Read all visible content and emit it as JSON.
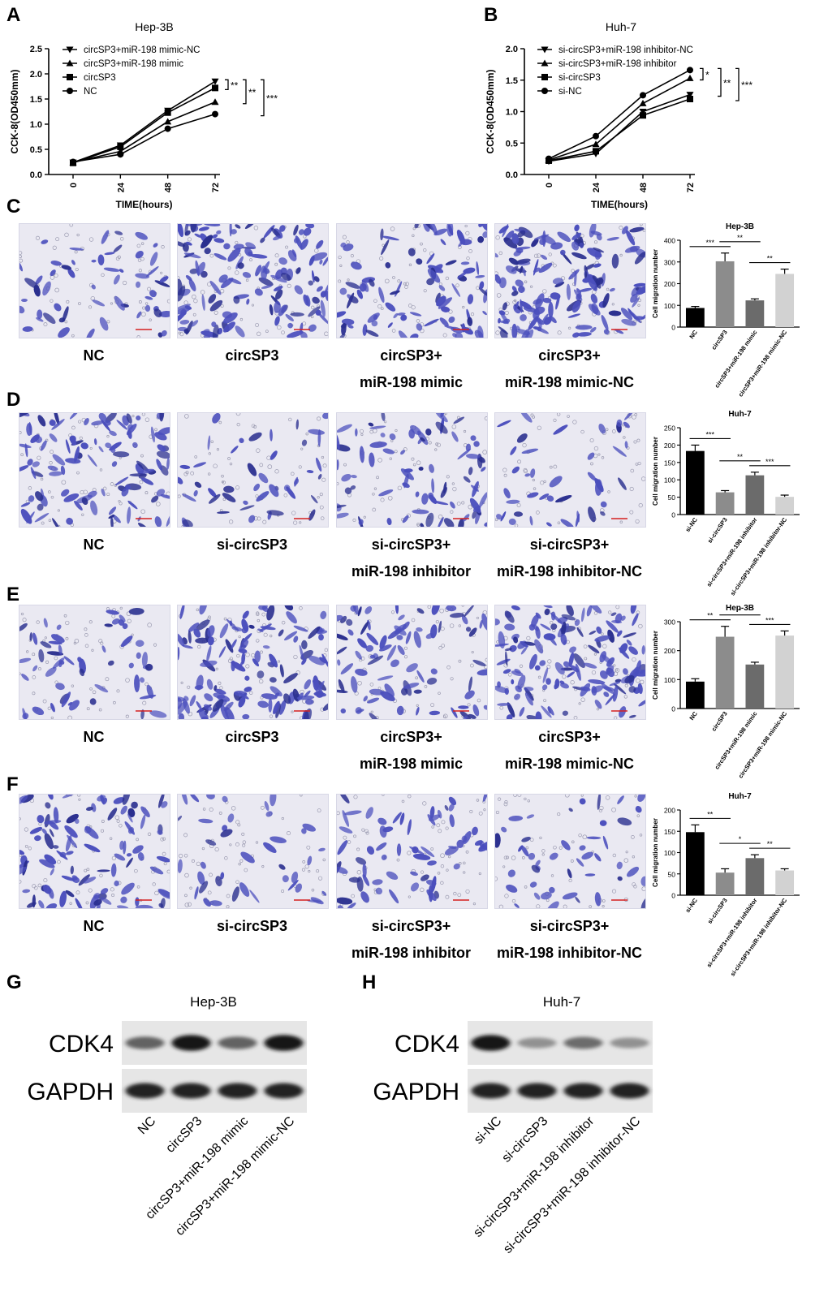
{
  "panel_letters": [
    "A",
    "B",
    "C",
    "D",
    "E",
    "F",
    "G",
    "H"
  ],
  "colors": {
    "stain_bg": "#eae9f2",
    "stain_cell": "#4b4fbd",
    "stain_dark": "#2a2f8f",
    "scale_bar": "#d42020"
  },
  "chart_data": [
    {
      "id": "A",
      "type": "line",
      "title": "Hep-3B",
      "xlabel": "TIME(hours)",
      "ylabel": "CCK-8(OD450mm)",
      "x": [
        0,
        24,
        48,
        72
      ],
      "ylim": [
        0,
        2.5
      ],
      "yticks": [
        0,
        0.5,
        1.0,
        1.5,
        2.0,
        2.5
      ],
      "series": [
        {
          "name": "circSP3+miR-198 mimic-NC",
          "marker": "tri-down",
          "values": [
            0.24,
            0.58,
            1.27,
            1.85
          ]
        },
        {
          "name": "circSP3+miR-198 mimic",
          "marker": "tri-up",
          "values": [
            0.24,
            0.46,
            1.05,
            1.44
          ]
        },
        {
          "name": "circSP3",
          "marker": "square",
          "values": [
            0.23,
            0.55,
            1.23,
            1.72
          ]
        },
        {
          "name": "NC",
          "marker": "circle",
          "values": [
            0.25,
            0.4,
            0.91,
            1.2
          ]
        }
      ],
      "significance": [
        "**",
        "**",
        "***"
      ],
      "legend": "top-left",
      "grid": false
    },
    {
      "id": "B",
      "type": "line",
      "title": "Huh-7",
      "xlabel": "TIME(hours)",
      "ylabel": "CCK-8(OD450mm)",
      "x": [
        0,
        24,
        48,
        72
      ],
      "ylim": [
        0,
        2.0
      ],
      "yticks": [
        0,
        0.5,
        1.0,
        1.5,
        2.0
      ],
      "series": [
        {
          "name": "si-circSP3+miR-198 inhibitor-NC",
          "marker": "tri-down",
          "values": [
            0.21,
            0.33,
            1.0,
            1.27
          ]
        },
        {
          "name": "si-circSP3+miR-198 inhibitor",
          "marker": "tri-up",
          "values": [
            0.23,
            0.48,
            1.13,
            1.53
          ]
        },
        {
          "name": "si-circSP3",
          "marker": "square",
          "values": [
            0.22,
            0.37,
            0.94,
            1.2
          ]
        },
        {
          "name": "si-NC",
          "marker": "circle",
          "values": [
            0.25,
            0.61,
            1.26,
            1.66
          ]
        }
      ],
      "significance": [
        "*",
        "**",
        "***"
      ],
      "legend": "top-left",
      "grid": false
    },
    {
      "id": "C",
      "type": "bar",
      "title": "Hep-3B",
      "ylabel": "Cell migration number",
      "ylim": [
        0,
        400
      ],
      "yticks": [
        0,
        100,
        200,
        300,
        400
      ],
      "categories": [
        "NC",
        "circSP3",
        "circSP3+miR-198 mimic",
        "circSP3+miR-198 mimic-NC"
      ],
      "values": [
        88,
        303,
        123,
        245
      ],
      "errors": [
        7,
        38,
        7,
        22
      ],
      "bar_colors": [
        "#000000",
        "#8c8c8c",
        "#6b6b6b",
        "#d2d2d2"
      ],
      "brackets": [
        {
          "from": 0,
          "to": 1,
          "label": "***"
        },
        {
          "from": 1,
          "to": 2,
          "label": "**"
        },
        {
          "from": 2,
          "to": 3,
          "label": "**"
        }
      ]
    },
    {
      "id": "D",
      "type": "bar",
      "title": "Huh-7",
      "ylabel": "Cell migration number",
      "ylim": [
        0,
        250
      ],
      "yticks": [
        0,
        50,
        100,
        150,
        200,
        250
      ],
      "categories": [
        "si-NC",
        "si-circSP3",
        "si-circSP3+miR-198 inhibitor",
        "si-circSP3+miR-198 inhibitor-NC"
      ],
      "values": [
        183,
        64,
        113,
        51
      ],
      "errors": [
        17,
        5,
        9,
        5
      ],
      "bar_colors": [
        "#000000",
        "#8c8c8c",
        "#6b6b6b",
        "#d2d2d2"
      ],
      "brackets": [
        {
          "from": 0,
          "to": 1,
          "label": "***"
        },
        {
          "from": 1,
          "to": 2,
          "label": "**"
        },
        {
          "from": 2,
          "to": 3,
          "label": "***"
        }
      ]
    },
    {
      "id": "E",
      "type": "bar",
      "title": "Hep-3B",
      "ylabel": "Cell migration number",
      "ylim": [
        0,
        300
      ],
      "yticks": [
        0,
        100,
        200,
        300
      ],
      "categories": [
        "NC",
        "circSP3",
        "circSP3+miR-198 mimic",
        "circSP3+miR-198 mimic-NC"
      ],
      "values": [
        93,
        248,
        152,
        252
      ],
      "errors": [
        10,
        36,
        8,
        16
      ],
      "bar_colors": [
        "#000000",
        "#8c8c8c",
        "#6b6b6b",
        "#d2d2d2"
      ],
      "brackets": [
        {
          "from": 0,
          "to": 1,
          "label": "**"
        },
        {
          "from": 1,
          "to": 2,
          "label": "*"
        },
        {
          "from": 2,
          "to": 3,
          "label": "***"
        }
      ]
    },
    {
      "id": "F",
      "type": "bar",
      "title": "Huh-7",
      "ylabel": "Cell migration number",
      "ylim": [
        0,
        200
      ],
      "yticks": [
        0,
        50,
        100,
        150,
        200
      ],
      "categories": [
        "si-NC",
        "si-circSP3",
        "si-circSP3+miR-198 inhibitor",
        "si-circSP3+miR-198 inhibitor-NC"
      ],
      "values": [
        148,
        53,
        87,
        58
      ],
      "errors": [
        17,
        9,
        8,
        4
      ],
      "bar_colors": [
        "#000000",
        "#8c8c8c",
        "#6b6b6b",
        "#d2d2d2"
      ],
      "brackets": [
        {
          "from": 0,
          "to": 1,
          "label": "**"
        },
        {
          "from": 1,
          "to": 2,
          "label": "*"
        },
        {
          "from": 2,
          "to": 3,
          "label": "**"
        }
      ]
    }
  ],
  "micrograph_rows": [
    {
      "id": "C",
      "labels": [
        [
          "NC"
        ],
        [
          "circSP3"
        ],
        [
          "circSP3+",
          "miR-198 mimic"
        ],
        [
          "circSP3+",
          "miR-198 mimic-NC"
        ]
      ],
      "densities": [
        55,
        140,
        95,
        150
      ]
    },
    {
      "id": "D",
      "labels": [
        [
          "NC"
        ],
        [
          "si-circSP3"
        ],
        [
          "si-circSP3+",
          "miR-198 inhibitor"
        ],
        [
          "si-circSP3+",
          "miR-198 inhibitor-NC"
        ]
      ],
      "densities": [
        110,
        45,
        80,
        40
      ]
    },
    {
      "id": "E",
      "labels": [
        [
          "NC"
        ],
        [
          "circSP3"
        ],
        [
          "circSP3+",
          "miR-198 mimic"
        ],
        [
          "circSP3+",
          "miR-198 mimic-NC"
        ]
      ],
      "densities": [
        55,
        135,
        85,
        145
      ]
    },
    {
      "id": "F",
      "labels": [
        [
          "NC"
        ],
        [
          "si-circSP3"
        ],
        [
          "si-circSP3+",
          "miR-198 inhibitor"
        ],
        [
          "si-circSP3+",
          "miR-198 inhibitor-NC"
        ]
      ],
      "densities": [
        100,
        40,
        65,
        45
      ]
    }
  ],
  "western_blots": [
    {
      "id": "G",
      "title": "Hep-3B",
      "proteins": [
        "CDK4",
        "GAPDH"
      ],
      "lanes": [
        "NC",
        "circSP3",
        "circSP3+miR-198 mimic",
        "circSP3+miR-198 mimic-NC"
      ],
      "intensity": {
        "CDK4": [
          0.55,
          0.95,
          0.55,
          0.95
        ],
        "GAPDH": [
          0.9,
          0.9,
          0.9,
          0.9
        ]
      }
    },
    {
      "id": "H",
      "title": "Huh-7",
      "proteins": [
        "CDK4",
        "GAPDH"
      ],
      "lanes": [
        "si-NC",
        "si-circSP3",
        "si-circSP3+miR-198 inhibitor",
        "si-circSP3+miR-198 inhibitor-NC"
      ],
      "intensity": {
        "CDK4": [
          0.95,
          0.3,
          0.5,
          0.3
        ],
        "GAPDH": [
          0.9,
          0.9,
          0.9,
          0.9
        ]
      }
    }
  ]
}
